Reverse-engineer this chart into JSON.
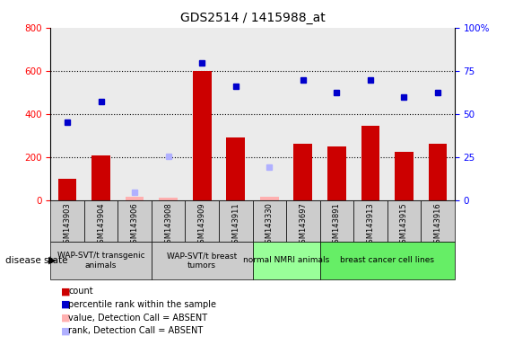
{
  "title": "GDS2514 / 1415988_at",
  "samples": [
    "GSM143903",
    "GSM143904",
    "GSM143906",
    "GSM143908",
    "GSM143909",
    "GSM143911",
    "GSM143330",
    "GSM143697",
    "GSM143891",
    "GSM143913",
    "GSM143915",
    "GSM143916"
  ],
  "count_values": [
    100,
    207,
    15,
    10,
    600,
    290,
    15,
    262,
    247,
    345,
    222,
    262
  ],
  "count_absent_flags": [
    false,
    false,
    true,
    true,
    false,
    false,
    true,
    false,
    false,
    false,
    false,
    false
  ],
  "rank_values": [
    360,
    457,
    null,
    null,
    637,
    527,
    null,
    558,
    500,
    558,
    477,
    497
  ],
  "rank_absent_flags": [
    false,
    false,
    true,
    true,
    false,
    false,
    true,
    false,
    false,
    false,
    false,
    false
  ],
  "rank_absent_values": [
    null,
    null,
    35,
    205,
    null,
    null,
    153,
    null,
    null,
    null,
    null,
    null
  ],
  "ylim_left": [
    0,
    800
  ],
  "ylim_right": [
    0,
    100
  ],
  "bar_color": "#cc0000",
  "rank_color": "#0000cc",
  "absent_bar_color": "#ffb0b0",
  "absent_rank_color": "#b0b0ff",
  "col_bg_color": "#c8c8c8",
  "group_defs": [
    {
      "label": "WAP-SVT/t transgenic\nanimals",
      "indices": [
        0,
        1,
        2
      ],
      "color": "#cccccc"
    },
    {
      "label": "WAP-SVT/t breast\ntumors",
      "indices": [
        3,
        4,
        5
      ],
      "color": "#cccccc"
    },
    {
      "label": "normal NMRI animals",
      "indices": [
        6,
        7
      ],
      "color": "#99ff99"
    },
    {
      "label": "breast cancer cell lines",
      "indices": [
        8,
        9,
        10,
        11
      ],
      "color": "#66ee66"
    }
  ],
  "background_color": "#ffffff",
  "legend_labels": [
    "count",
    "percentile rank within the sample",
    "value, Detection Call = ABSENT",
    "rank, Detection Call = ABSENT"
  ],
  "legend_colors": [
    "#cc0000",
    "#0000cc",
    "#ffb0b0",
    "#b0b0ff"
  ]
}
